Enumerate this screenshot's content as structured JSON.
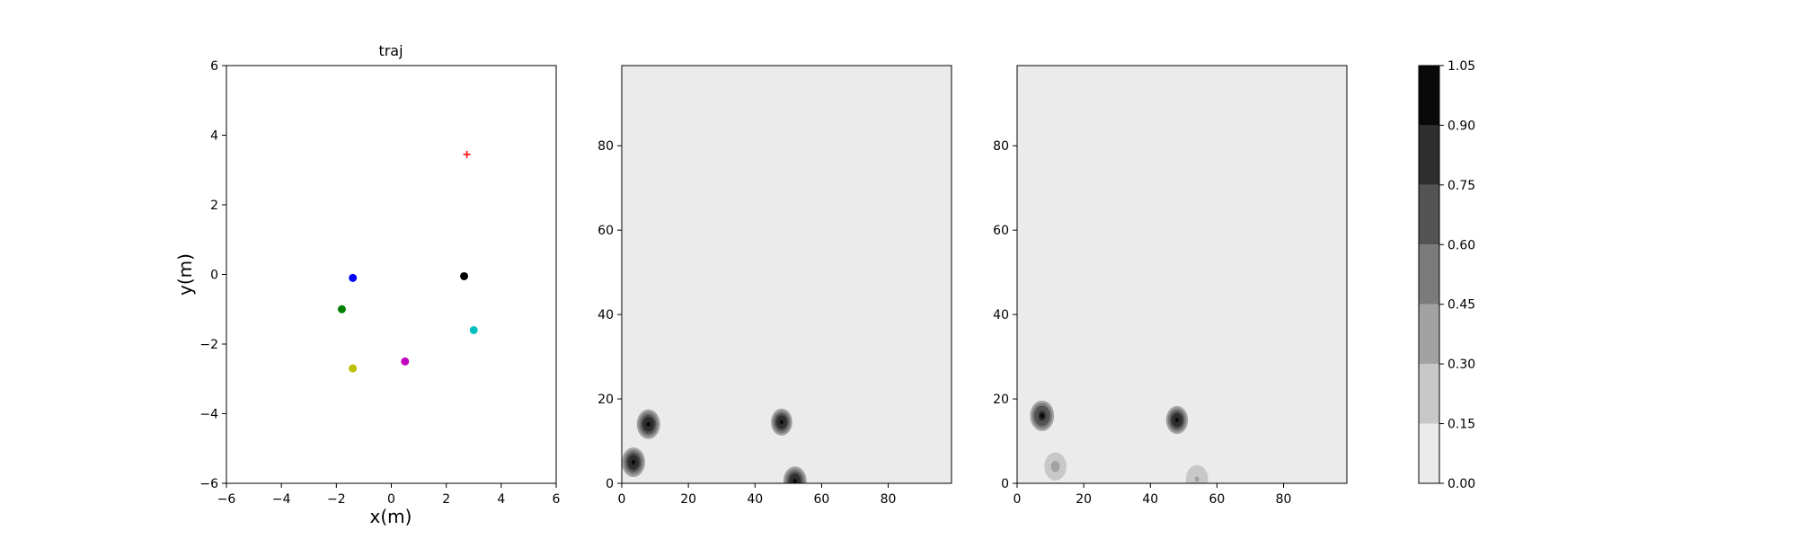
{
  "chart_data": [
    {
      "type": "scatter",
      "title": "traj",
      "xlabel": "x(m)",
      "ylabel": "y(m)",
      "xlim": [
        -6,
        6
      ],
      "ylim": [
        -6,
        6
      ],
      "xticks": [
        -6,
        -4,
        -2,
        0,
        2,
        4,
        6
      ],
      "yticks": [
        -6,
        -4,
        -2,
        0,
        2,
        4,
        6
      ],
      "grid": false,
      "points": [
        {
          "x": -1.4,
          "y": -0.1,
          "color": "#0000ff",
          "marker": "circle"
        },
        {
          "x": 2.65,
          "y": -0.05,
          "color": "#000000",
          "marker": "circle"
        },
        {
          "x": -1.8,
          "y": -1.0,
          "color": "#008000",
          "marker": "circle"
        },
        {
          "x": 3.0,
          "y": -1.6,
          "color": "#00bfbf",
          "marker": "circle"
        },
        {
          "x": 0.5,
          "y": -2.5,
          "color": "#bf00bf",
          "marker": "circle"
        },
        {
          "x": -1.4,
          "y": -2.7,
          "color": "#bfbf00",
          "marker": "circle"
        },
        {
          "x": 2.75,
          "y": 3.45,
          "color": "#ff0000",
          "marker": "plus"
        }
      ]
    },
    {
      "type": "heatmap",
      "title": "",
      "xlim": [
        0,
        99
      ],
      "ylim": [
        0,
        99
      ],
      "xticks": [
        0,
        20,
        40,
        60,
        80
      ],
      "yticks": [
        0,
        20,
        40,
        60,
        80
      ],
      "background_level": 0.05,
      "blobs": [
        {
          "x": 8,
          "y": 14,
          "r": 3.5,
          "level": 1.0
        },
        {
          "x": 3.5,
          "y": 5,
          "r": 3.5,
          "level": 1.0
        },
        {
          "x": 48,
          "y": 14.5,
          "r": 3.2,
          "level": 1.0
        },
        {
          "x": 52,
          "y": 0.5,
          "r": 3.5,
          "level": 1.0
        }
      ]
    },
    {
      "type": "heatmap",
      "title": "",
      "xlim": [
        0,
        99
      ],
      "ylim": [
        0,
        99
      ],
      "xticks": [
        0,
        20,
        40,
        60,
        80
      ],
      "yticks": [
        0,
        20,
        40,
        60,
        80
      ],
      "background_level": 0.05,
      "blobs": [
        {
          "x": 7.5,
          "y": 16,
          "r": 3.6,
          "level": 0.97
        },
        {
          "x": 48,
          "y": 15,
          "r": 3.3,
          "level": 1.0
        },
        {
          "x": 11.5,
          "y": 4,
          "r": 4.0,
          "level": 0.35
        },
        {
          "x": 54,
          "y": 1,
          "r": 4.0,
          "level": 0.3
        }
      ]
    }
  ],
  "colorbar": {
    "levels": [
      0.0,
      0.15,
      0.3,
      0.45,
      0.6,
      0.75,
      0.9,
      1.05
    ],
    "tick_labels": [
      "0.00",
      "0.15",
      "0.30",
      "0.45",
      "0.60",
      "0.75",
      "0.90",
      "1.05"
    ],
    "colors": [
      "#ebebeb",
      "#c8c8c8",
      "#a2a2a2",
      "#7b7b7b",
      "#535353",
      "#2e2e2e",
      "#090909"
    ]
  }
}
